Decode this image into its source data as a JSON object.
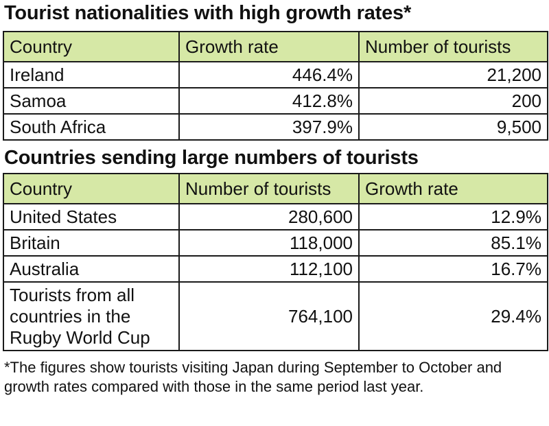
{
  "chart_data": [
    {
      "type": "table",
      "title": "Tourist nationalities with high growth rates*",
      "columns": [
        "Country",
        "Growth rate",
        "Number of tourists"
      ],
      "rows": [
        [
          "Ireland",
          "446.4%",
          "21,200"
        ],
        [
          "Samoa",
          "412.8%",
          "200"
        ],
        [
          "South Africa",
          "397.9%",
          "9,500"
        ]
      ]
    },
    {
      "type": "table",
      "title": "Countries sending large numbers of tourists",
      "columns": [
        "Country",
        "Number of tourists",
        "Growth rate"
      ],
      "rows": [
        [
          "United States",
          "280,600",
          "12.9%"
        ],
        [
          "Britain",
          "118,000",
          "85.1%"
        ],
        [
          "Australia",
          "112,100",
          "16.7%"
        ],
        [
          "Tourists from all countries in the Rugby World Cup",
          "764,100",
          "29.4%"
        ]
      ]
    }
  ],
  "footnote": "*The figures show tourists visiting Japan during September to October and growth rates compared with those in the same period last year.",
  "colors": {
    "header_fill": "#d6e8a6",
    "border": "#1a1a1a"
  }
}
